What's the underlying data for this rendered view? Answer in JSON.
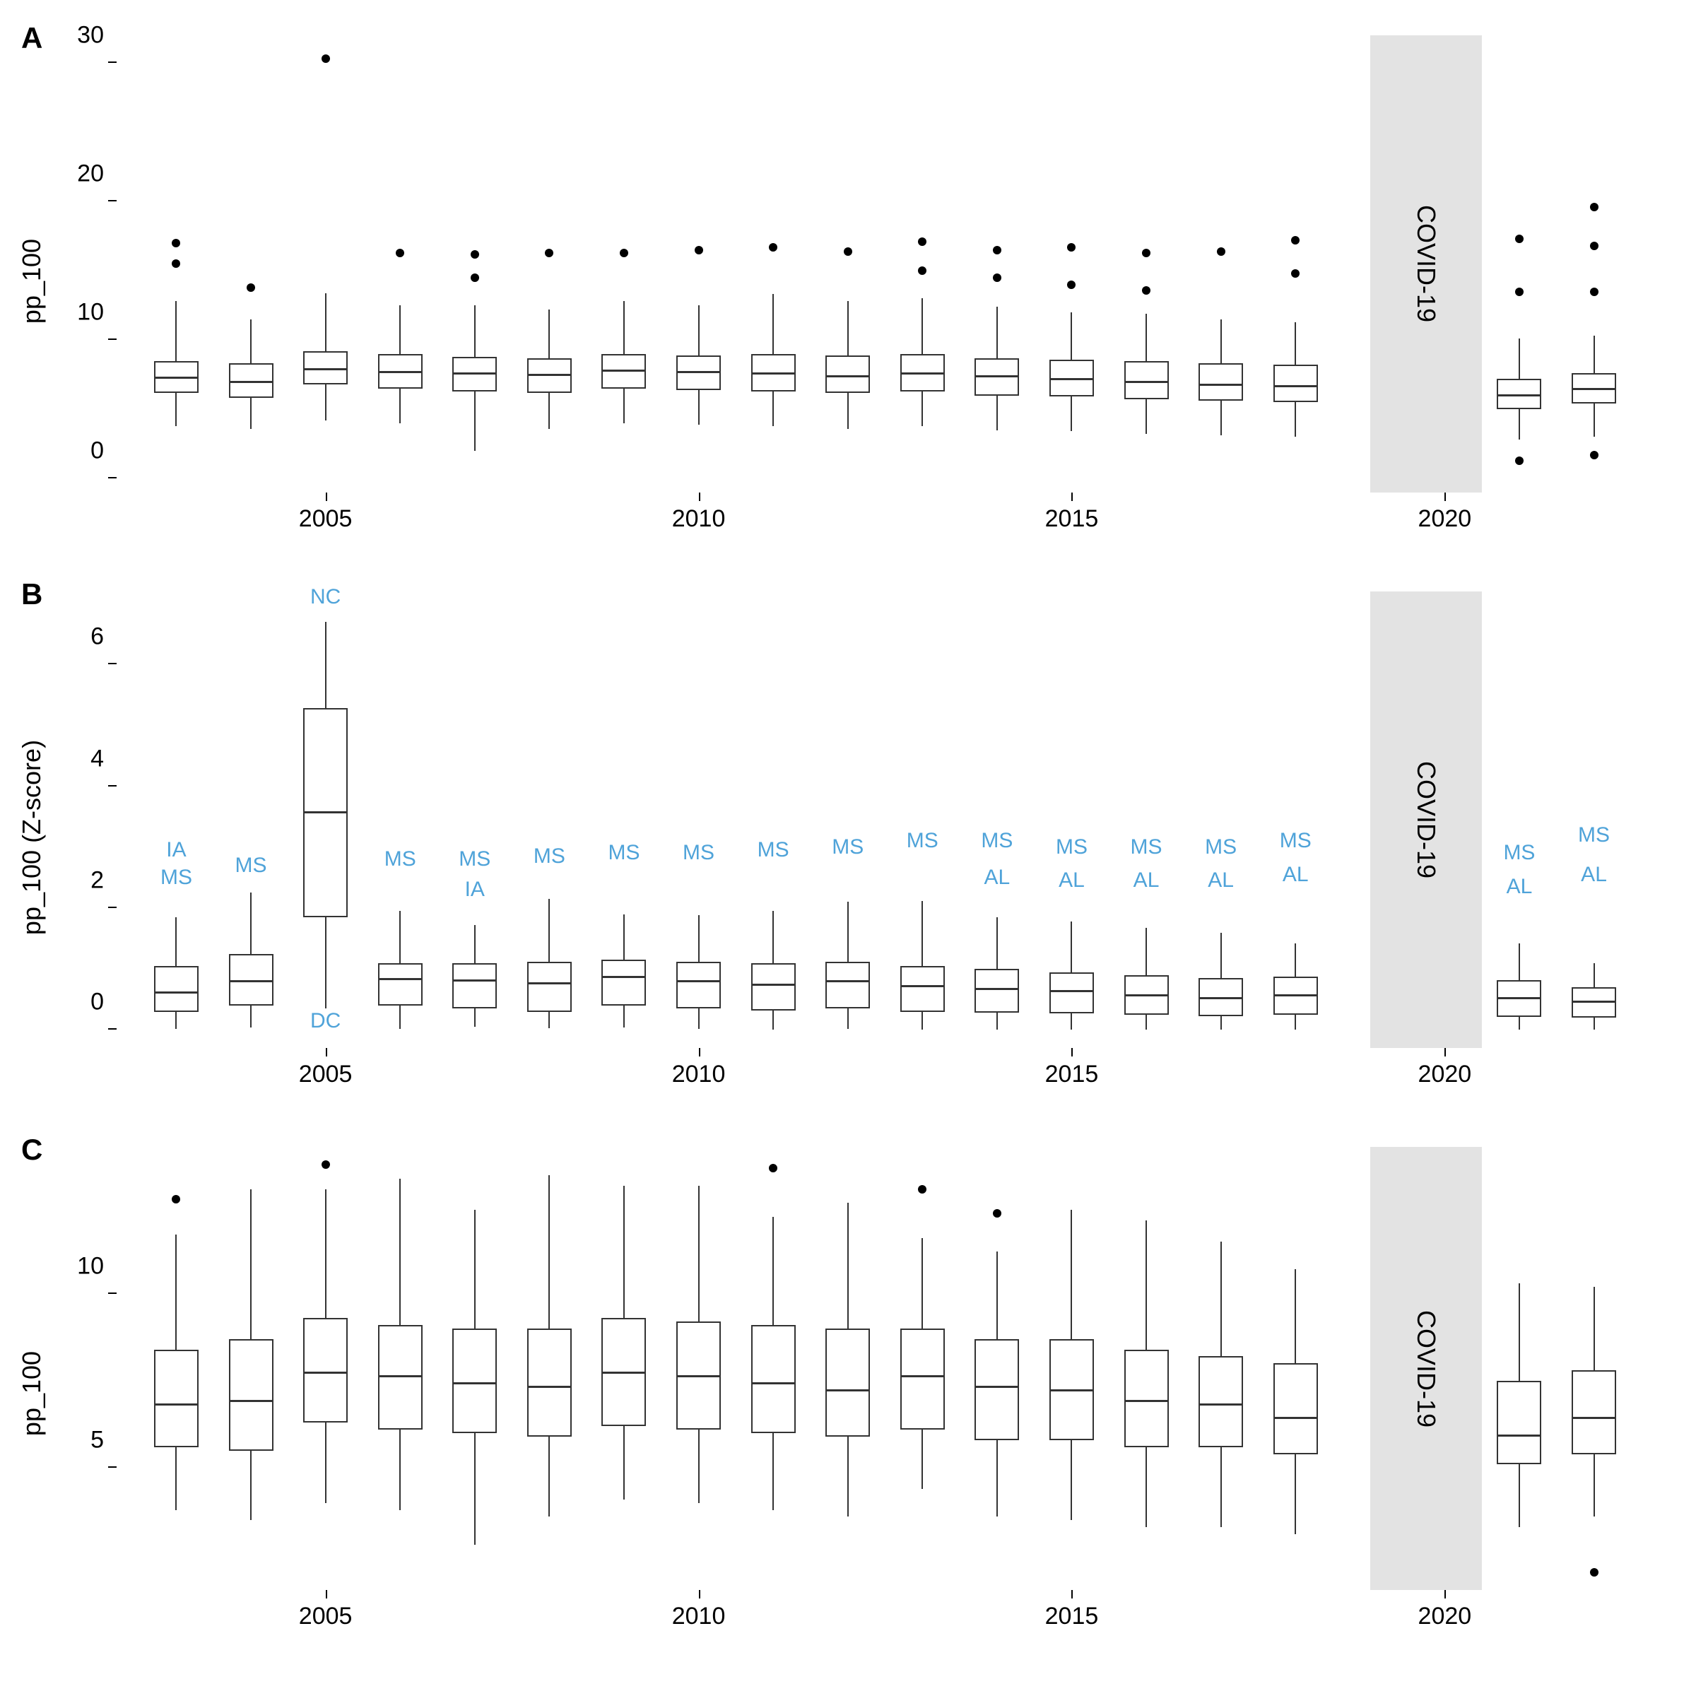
{
  "layout": {
    "background_color": "#ffffff",
    "panel_count": 3,
    "annotation_color": "#4fa3d9",
    "box_border_color": "#333333",
    "outlier_color": "#000000",
    "covid_band_color": "#e3e3e3",
    "axis_color": "#000000",
    "font_family": "Arial",
    "panel_label_fontsize": 42,
    "axis_label_fontsize": 36,
    "tick_label_fontsize": 34,
    "annotation_fontsize": 30
  },
  "x_axis": {
    "years": [
      2003,
      2004,
      2005,
      2006,
      2007,
      2008,
      2009,
      2010,
      2011,
      2012,
      2013,
      2014,
      2015,
      2016,
      2017,
      2018,
      2021,
      2022
    ],
    "tick_values": [
      2005,
      2010,
      2015,
      2020
    ],
    "range_min": 2002.2,
    "range_max": 2022.8
  },
  "covid_band": {
    "year_start": 2019,
    "year_end": 2020.5,
    "label": "COVID-19"
  },
  "panels": {
    "A": {
      "label": "A",
      "y_label": "pp_100",
      "y_ticks": [
        0,
        10,
        20,
        30
      ],
      "ylim": [
        -1,
        32
      ],
      "boxes": [
        {
          "year": 2003,
          "q1": 6.2,
          "median": 7.2,
          "q3": 8.5,
          "low": 3.8,
          "high": 12.8,
          "outliers": [
            15.5,
            17.0
          ]
        },
        {
          "year": 2004,
          "q1": 5.8,
          "median": 6.9,
          "q3": 8.3,
          "low": 3.6,
          "high": 11.5,
          "outliers": [
            13.8
          ]
        },
        {
          "year": 2005,
          "q1": 6.8,
          "median": 7.8,
          "q3": 9.2,
          "low": 4.2,
          "high": 13.4,
          "outliers": [
            30.3
          ]
        },
        {
          "year": 2006,
          "q1": 6.5,
          "median": 7.6,
          "q3": 9.0,
          "low": 4.0,
          "high": 12.5,
          "outliers": [
            16.3
          ]
        },
        {
          "year": 2007,
          "q1": 6.3,
          "median": 7.5,
          "q3": 8.8,
          "low": 2.0,
          "high": 12.5,
          "outliers": [
            14.5,
            16.2
          ]
        },
        {
          "year": 2008,
          "q1": 6.2,
          "median": 7.4,
          "q3": 8.7,
          "low": 3.6,
          "high": 12.2,
          "outliers": [
            16.3
          ]
        },
        {
          "year": 2009,
          "q1": 6.5,
          "median": 7.7,
          "q3": 9.0,
          "low": 4.0,
          "high": 12.8,
          "outliers": [
            16.3
          ]
        },
        {
          "year": 2010,
          "q1": 6.4,
          "median": 7.6,
          "q3": 8.9,
          "low": 3.9,
          "high": 12.5,
          "outliers": [
            16.5
          ]
        },
        {
          "year": 2011,
          "q1": 6.3,
          "median": 7.5,
          "q3": 9.0,
          "low": 3.8,
          "high": 13.3,
          "outliers": [
            16.7
          ]
        },
        {
          "year": 2012,
          "q1": 6.2,
          "median": 7.3,
          "q3": 8.9,
          "low": 3.6,
          "high": 12.8,
          "outliers": [
            16.4
          ]
        },
        {
          "year": 2013,
          "q1": 6.3,
          "median": 7.5,
          "q3": 9.0,
          "low": 3.8,
          "high": 13.0,
          "outliers": [
            15.0,
            17.1
          ]
        },
        {
          "year": 2014,
          "q1": 6.0,
          "median": 7.3,
          "q3": 8.7,
          "low": 3.5,
          "high": 12.4,
          "outliers": [
            14.5,
            16.5
          ]
        },
        {
          "year": 2015,
          "q1": 5.9,
          "median": 7.1,
          "q3": 8.6,
          "low": 3.4,
          "high": 12.0,
          "outliers": [
            14.0,
            16.7
          ]
        },
        {
          "year": 2016,
          "q1": 5.7,
          "median": 6.9,
          "q3": 8.5,
          "low": 3.2,
          "high": 11.9,
          "outliers": [
            13.6,
            16.3
          ]
        },
        {
          "year": 2017,
          "q1": 5.6,
          "median": 6.7,
          "q3": 8.3,
          "low": 3.1,
          "high": 11.5,
          "outliers": [
            16.4
          ]
        },
        {
          "year": 2018,
          "q1": 5.5,
          "median": 6.6,
          "q3": 8.2,
          "low": 3.0,
          "high": 11.3,
          "outliers": [
            14.8,
            17.2
          ]
        },
        {
          "year": 2021,
          "q1": 5.0,
          "median": 5.9,
          "q3": 7.2,
          "low": 2.8,
          "high": 10.1,
          "outliers": [
            1.3,
            13.5,
            17.3
          ]
        },
        {
          "year": 2022,
          "q1": 5.4,
          "median": 6.4,
          "q3": 7.6,
          "low": 3.0,
          "high": 10.3,
          "outliers": [
            1.7,
            13.5,
            16.8,
            19.6
          ]
        }
      ]
    },
    "B": {
      "label": "B",
      "y_label": "pp_100 (Z-score)",
      "y_ticks": [
        0,
        2,
        4,
        6
      ],
      "ylim": [
        -0.3,
        7.2
      ],
      "boxes": [
        {
          "year": 2003,
          "q1": 0.3,
          "median": 0.6,
          "q3": 1.05,
          "low": 0.02,
          "high": 1.85,
          "outliers": []
        },
        {
          "year": 2004,
          "q1": 0.4,
          "median": 0.78,
          "q3": 1.25,
          "low": 0.04,
          "high": 2.25,
          "outliers": []
        },
        {
          "year": 2005,
          "q1": 1.85,
          "median": 3.55,
          "q3": 5.28,
          "low": 0.35,
          "high": 6.7,
          "outliers": []
        },
        {
          "year": 2006,
          "q1": 0.4,
          "median": 0.82,
          "q3": 1.1,
          "low": 0.02,
          "high": 1.95,
          "outliers": []
        },
        {
          "year": 2007,
          "q1": 0.35,
          "median": 0.8,
          "q3": 1.1,
          "low": 0.05,
          "high": 1.72,
          "outliers": []
        },
        {
          "year": 2008,
          "q1": 0.3,
          "median": 0.75,
          "q3": 1.12,
          "low": 0.03,
          "high": 2.15,
          "outliers": []
        },
        {
          "year": 2009,
          "q1": 0.4,
          "median": 0.85,
          "q3": 1.15,
          "low": 0.04,
          "high": 1.9,
          "outliers": []
        },
        {
          "year": 2010,
          "q1": 0.35,
          "median": 0.78,
          "q3": 1.12,
          "low": 0.02,
          "high": 1.88,
          "outliers": []
        },
        {
          "year": 2011,
          "q1": 0.32,
          "median": 0.72,
          "q3": 1.1,
          "low": 0.01,
          "high": 1.95,
          "outliers": []
        },
        {
          "year": 2012,
          "q1": 0.35,
          "median": 0.78,
          "q3": 1.12,
          "low": 0.02,
          "high": 2.1,
          "outliers": []
        },
        {
          "year": 2013,
          "q1": 0.3,
          "median": 0.7,
          "q3": 1.05,
          "low": 0.01,
          "high": 2.12,
          "outliers": []
        },
        {
          "year": 2014,
          "q1": 0.28,
          "median": 0.65,
          "q3": 1.0,
          "low": 0.01,
          "high": 1.85,
          "outliers": []
        },
        {
          "year": 2015,
          "q1": 0.27,
          "median": 0.62,
          "q3": 0.95,
          "low": 0.01,
          "high": 1.78,
          "outliers": []
        },
        {
          "year": 2016,
          "q1": 0.25,
          "median": 0.55,
          "q3": 0.9,
          "low": 0.01,
          "high": 1.68,
          "outliers": []
        },
        {
          "year": 2017,
          "q1": 0.23,
          "median": 0.5,
          "q3": 0.85,
          "low": 0.01,
          "high": 1.6,
          "outliers": []
        },
        {
          "year": 2018,
          "q1": 0.25,
          "median": 0.55,
          "q3": 0.88,
          "low": 0.01,
          "high": 1.42,
          "outliers": []
        },
        {
          "year": 2021,
          "q1": 0.22,
          "median": 0.5,
          "q3": 0.82,
          "low": 0.01,
          "high": 1.42,
          "outliers": []
        },
        {
          "year": 2022,
          "q1": 0.2,
          "median": 0.45,
          "q3": 0.7,
          "low": 0.01,
          "high": 1.1,
          "outliers": []
        }
      ],
      "annotations": [
        {
          "year": 2003,
          "y": 2.95,
          "text": "IA"
        },
        {
          "year": 2003,
          "y": 2.5,
          "text": "MS"
        },
        {
          "year": 2004,
          "y": 2.7,
          "text": "MS"
        },
        {
          "year": 2005,
          "y": 7.1,
          "text": "NC"
        },
        {
          "year": 2005,
          "y": 0.15,
          "text": "DC"
        },
        {
          "year": 2006,
          "y": 2.8,
          "text": "MS"
        },
        {
          "year": 2007,
          "y": 2.8,
          "text": "MS"
        },
        {
          "year": 2007,
          "y": 2.3,
          "text": "IA"
        },
        {
          "year": 2008,
          "y": 2.85,
          "text": "MS"
        },
        {
          "year": 2009,
          "y": 2.9,
          "text": "MS"
        },
        {
          "year": 2010,
          "y": 2.9,
          "text": "MS"
        },
        {
          "year": 2011,
          "y": 2.95,
          "text": "MS"
        },
        {
          "year": 2012,
          "y": 3.0,
          "text": "MS"
        },
        {
          "year": 2013,
          "y": 3.1,
          "text": "MS"
        },
        {
          "year": 2014,
          "y": 3.1,
          "text": "MS"
        },
        {
          "year": 2014,
          "y": 2.5,
          "text": "AL"
        },
        {
          "year": 2015,
          "y": 3.0,
          "text": "MS"
        },
        {
          "year": 2015,
          "y": 2.45,
          "text": "AL"
        },
        {
          "year": 2016,
          "y": 3.0,
          "text": "MS"
        },
        {
          "year": 2016,
          "y": 2.45,
          "text": "AL"
        },
        {
          "year": 2017,
          "y": 3.0,
          "text": "MS"
        },
        {
          "year": 2017,
          "y": 2.45,
          "text": "AL"
        },
        {
          "year": 2018,
          "y": 3.1,
          "text": "MS"
        },
        {
          "year": 2018,
          "y": 2.55,
          "text": "AL"
        },
        {
          "year": 2021,
          "y": 2.9,
          "text": "MS"
        },
        {
          "year": 2021,
          "y": 2.35,
          "text": "AL"
        },
        {
          "year": 2022,
          "y": 3.2,
          "text": "MS"
        },
        {
          "year": 2022,
          "y": 2.55,
          "text": "AL"
        }
      ]
    },
    "C": {
      "label": "C",
      "y_label": "pp_100",
      "y_ticks": [
        5,
        10
      ],
      "ylim": [
        1.5,
        14.2
      ],
      "boxes": [
        {
          "year": 2003,
          "q1": 5.6,
          "median": 6.8,
          "q3": 8.4,
          "low": 3.8,
          "high": 11.7,
          "outliers": [
            12.7
          ]
        },
        {
          "year": 2004,
          "q1": 5.5,
          "median": 6.9,
          "q3": 8.7,
          "low": 3.5,
          "high": 13.0,
          "outliers": []
        },
        {
          "year": 2005,
          "q1": 6.3,
          "median": 7.7,
          "q3": 9.3,
          "low": 4.0,
          "high": 13.0,
          "outliers": [
            13.7
          ]
        },
        {
          "year": 2006,
          "q1": 6.1,
          "median": 7.6,
          "q3": 9.1,
          "low": 3.8,
          "high": 13.3,
          "outliers": []
        },
        {
          "year": 2007,
          "q1": 6.0,
          "median": 7.4,
          "q3": 9.0,
          "low": 2.8,
          "high": 12.4,
          "outliers": []
        },
        {
          "year": 2008,
          "q1": 5.9,
          "median": 7.3,
          "q3": 9.0,
          "low": 3.6,
          "high": 13.4,
          "outliers": []
        },
        {
          "year": 2009,
          "q1": 6.2,
          "median": 7.7,
          "q3": 9.3,
          "low": 4.1,
          "high": 13.1,
          "outliers": []
        },
        {
          "year": 2010,
          "q1": 6.1,
          "median": 7.6,
          "q3": 9.2,
          "low": 4.0,
          "high": 13.1,
          "outliers": []
        },
        {
          "year": 2011,
          "q1": 6.0,
          "median": 7.4,
          "q3": 9.1,
          "low": 3.8,
          "high": 12.2,
          "outliers": [
            13.6
          ]
        },
        {
          "year": 2012,
          "q1": 5.9,
          "median": 7.2,
          "q3": 9.0,
          "low": 3.6,
          "high": 12.6,
          "outliers": []
        },
        {
          "year": 2013,
          "q1": 6.1,
          "median": 7.6,
          "q3": 9.0,
          "low": 4.4,
          "high": 11.6,
          "outliers": [
            13.0
          ]
        },
        {
          "year": 2014,
          "q1": 5.8,
          "median": 7.3,
          "q3": 8.7,
          "low": 3.6,
          "high": 11.2,
          "outliers": [
            12.3
          ]
        },
        {
          "year": 2015,
          "q1": 5.8,
          "median": 7.2,
          "q3": 8.7,
          "low": 3.5,
          "high": 12.4,
          "outliers": []
        },
        {
          "year": 2016,
          "q1": 5.6,
          "median": 6.9,
          "q3": 8.4,
          "low": 3.3,
          "high": 12.1,
          "outliers": []
        },
        {
          "year": 2017,
          "q1": 5.6,
          "median": 6.8,
          "q3": 8.2,
          "low": 3.3,
          "high": 11.5,
          "outliers": []
        },
        {
          "year": 2018,
          "q1": 5.4,
          "median": 6.4,
          "q3": 8.0,
          "low": 3.1,
          "high": 10.7,
          "outliers": []
        },
        {
          "year": 2021,
          "q1": 5.1,
          "median": 5.9,
          "q3": 7.5,
          "low": 3.3,
          "high": 10.3,
          "outliers": []
        },
        {
          "year": 2022,
          "q1": 5.4,
          "median": 6.4,
          "q3": 7.8,
          "low": 3.6,
          "high": 10.2,
          "outliers": [
            2.0
          ]
        }
      ]
    }
  }
}
